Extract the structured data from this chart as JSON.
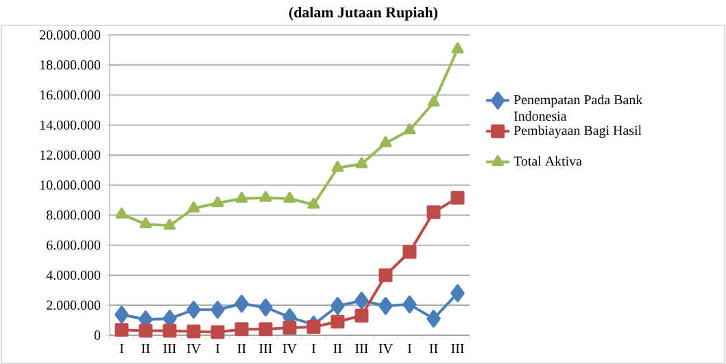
{
  "chart_data": {
    "type": "line",
    "title": "(dalam Jutaan Rupiah)",
    "categories": [
      "I",
      "II",
      "III",
      "IV",
      "I",
      "II",
      "III",
      "IV",
      "I",
      "II",
      "III",
      "IV",
      "I",
      "II",
      "III"
    ],
    "series": [
      {
        "name": "Penempatan Pada Bank Indonesia",
        "color": "#4a7ebb",
        "marker": "diamond",
        "values": [
          1370000,
          1050000,
          1100000,
          1700000,
          1700000,
          2100000,
          1850000,
          1200000,
          700000,
          1950000,
          2300000,
          1950000,
          2050000,
          1100000,
          2800000
        ]
      },
      {
        "name": "Pembiayaan Bagi Hasil",
        "color": "#be4b48",
        "marker": "square",
        "values": [
          350000,
          300000,
          300000,
          250000,
          200000,
          400000,
          400000,
          500000,
          550000,
          900000,
          1300000,
          4000000,
          5550000,
          8200000,
          9150000
        ]
      },
      {
        "name": "Total Aktiva",
        "color": "#98b954",
        "marker": "triangle",
        "values": [
          8050000,
          7400000,
          7300000,
          8450000,
          8800000,
          9100000,
          9150000,
          9100000,
          8700000,
          11150000,
          11400000,
          12800000,
          13650000,
          15500000,
          19050000
        ]
      }
    ],
    "ylim": [
      0,
      20000000
    ],
    "yticks": [
      0,
      {
        "value": 2000000,
        "label": "2.000.000"
      },
      {
        "value": 4000000,
        "label": "4.000.000"
      },
      {
        "value": 6000000,
        "label": "6.000.000"
      },
      {
        "value": 8000000,
        "label": "8.000.000"
      },
      {
        "value": 10000000,
        "label": "10.000.000"
      },
      {
        "value": 12000000,
        "label": "12.000.000"
      },
      {
        "value": 14000000,
        "label": "14.000.000"
      },
      {
        "value": 16000000,
        "label": "16.000.000"
      },
      {
        "value": 18000000,
        "label": "18.000.000"
      },
      {
        "value": 20000000,
        "label": "20.000.000"
      }
    ],
    "grid": "y",
    "legend": "right",
    "line_style": "solid"
  }
}
